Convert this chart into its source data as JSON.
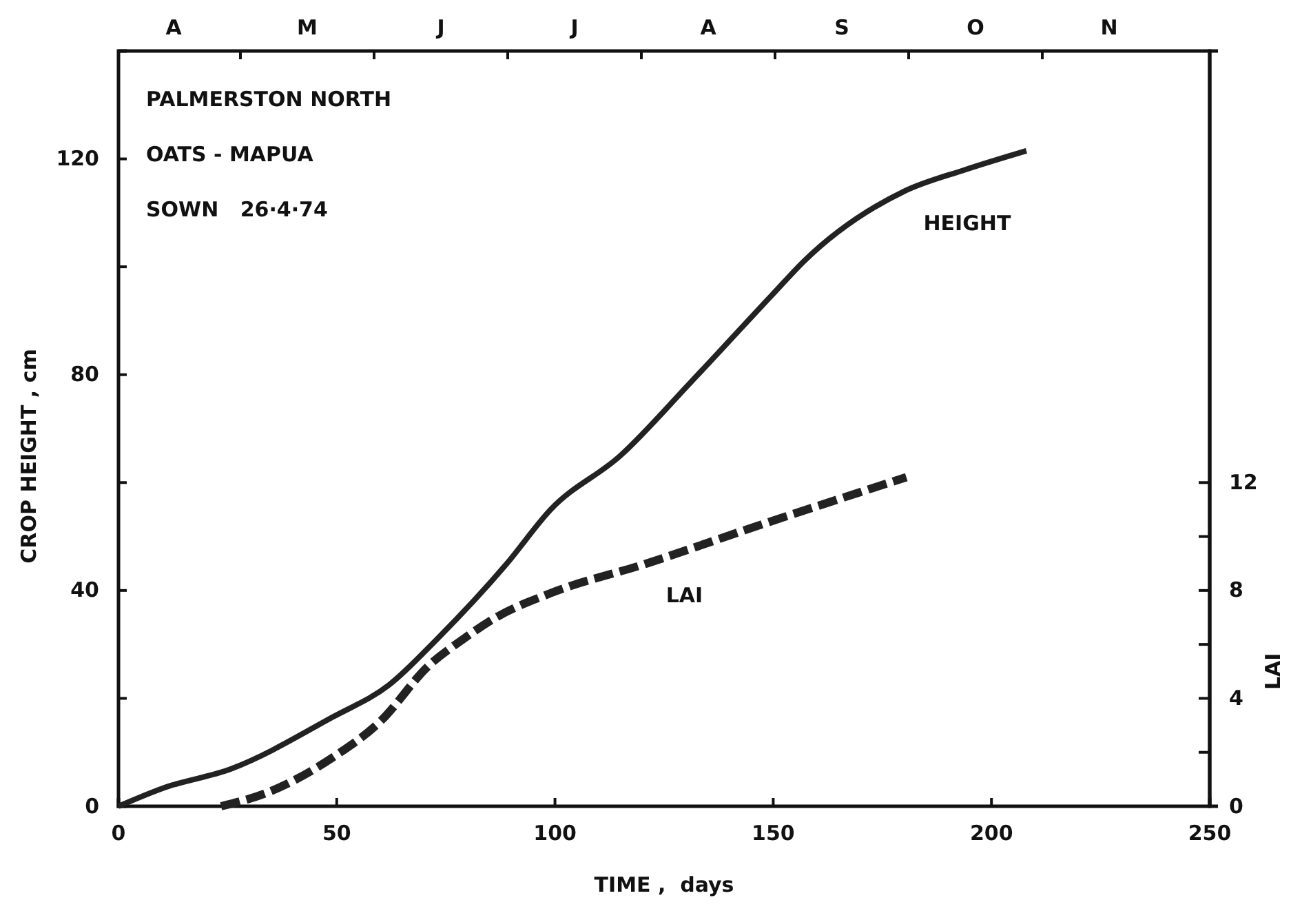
{
  "chart_data": {
    "type": "line",
    "xlabel": "TIME ,  days",
    "ylabel": "CROP HEIGHT , cm",
    "y2label": "LAI",
    "annotations": [
      "PALMERSTON NORTH",
      "OATS - MAPUA",
      "SOWN   26·4·74",
      "A",
      "M",
      "J",
      "J",
      "A",
      "S",
      "O",
      "N"
    ],
    "xlim": [
      0,
      250
    ],
    "xticks": [
      0,
      50,
      100,
      150,
      200,
      250
    ],
    "ylim": [
      0,
      140
    ],
    "yticks": [
      0,
      {
        "value": 20,
        "label": null
      },
      40,
      {
        "value": 60,
        "label": null
      },
      80,
      {
        "value": 100,
        "label": null
      },
      120
    ],
    "y2lim": [
      0,
      28
    ],
    "y2ticks": [
      0,
      {
        "value": 2,
        "label": null
      },
      4,
      {
        "value": 6,
        "label": null
      },
      8,
      {
        "value": 10,
        "label": null
      },
      12
    ],
    "series": [
      {
        "name": "HEIGHT",
        "color": "#222222",
        "line_style": "solid",
        "x": [
          0,
          10,
          26,
          49,
          62,
          73,
          89,
          99,
          115,
          131,
          150,
          157,
          180,
          194,
          208
        ],
        "values": [
          0,
          3.3,
          7,
          16.5,
          22.5,
          31,
          45,
          55,
          65,
          78.5,
          95,
          101,
          114,
          118,
          121.5
        ]
      },
      {
        "name": "LAI",
        "color": "#222222",
        "line_style": "dashed",
        "axis": "y2",
        "x": [
          23.5,
          34,
          49,
          60,
          71,
          79,
          86.5,
          99,
          121,
          146.5,
          180.5
        ],
        "values": [
          0,
          0.5,
          1.8,
          3.15,
          5.2,
          6.2,
          7,
          7.9,
          9,
          10.4,
          12.2
        ]
      }
    ]
  }
}
